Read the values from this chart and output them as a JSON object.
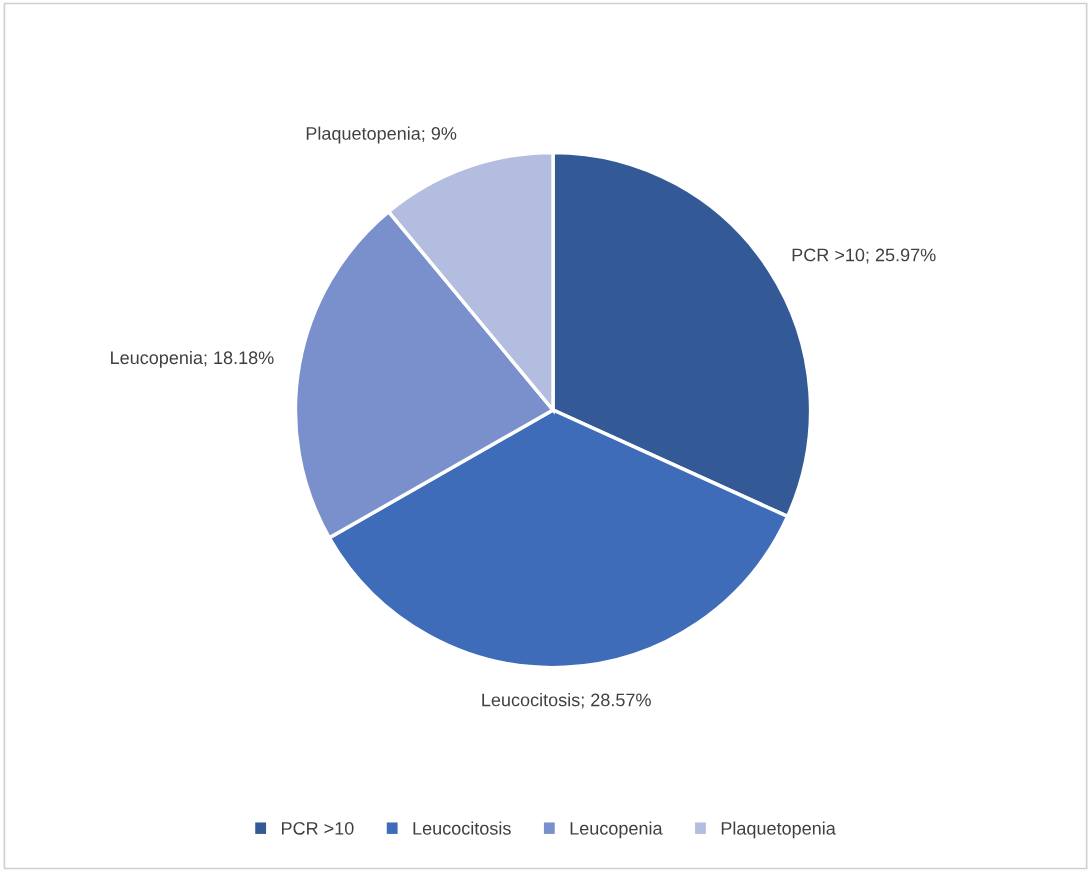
{
  "chart_data": {
    "type": "pie",
    "categories": [
      "PCR >10",
      "Leucocitosis",
      "Leucopenia",
      "Plaquetopenia"
    ],
    "values": [
      25.97,
      28.57,
      18.18,
      9
    ],
    "value_labels": [
      "PCR >10; 25.97%",
      "Leucocitosis; 28.57%",
      "Leucopenia; 18.18%",
      "Plaquetopenia; 9%"
    ],
    "colors": [
      "#335a96",
      "#3f6cb8",
      "#7a90cd",
      "#b3bde0"
    ],
    "legend": "bottom"
  }
}
